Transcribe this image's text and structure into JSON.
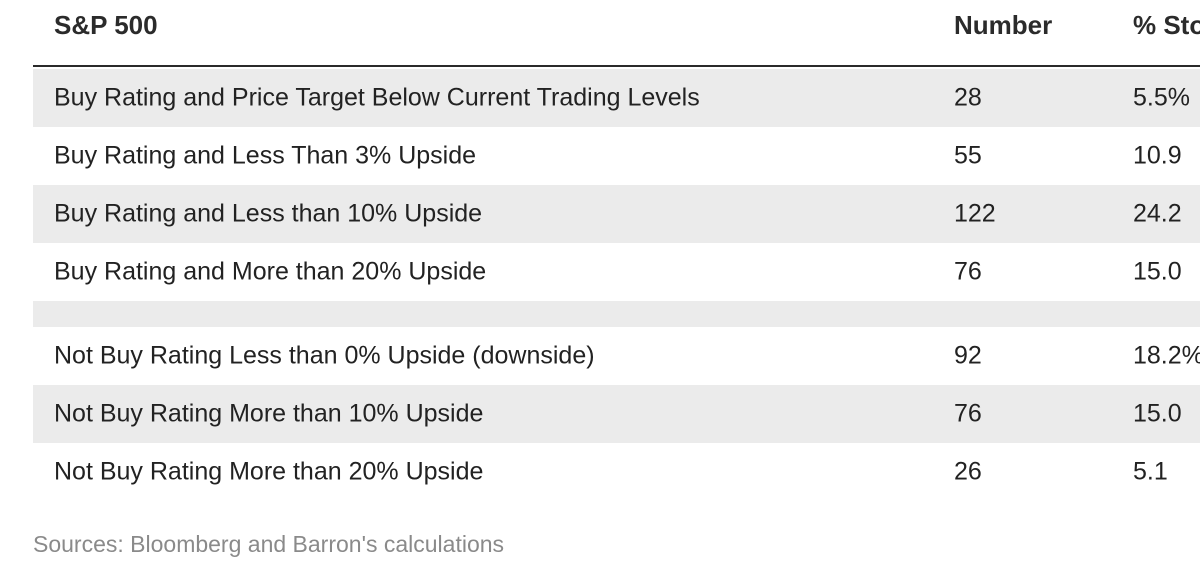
{
  "table": {
    "headers": [
      "S&P 500",
      "Number",
      "% Sto"
    ],
    "rows": [
      {
        "label": "Buy Rating and Price Target Below Current Trading Levels",
        "number": "28",
        "pct": "5.5%"
      },
      {
        "label": "Buy Rating and Less Than 3% Upside",
        "number": "55",
        "pct": "10.9"
      },
      {
        "label": "Buy Rating and Less than 10% Upside",
        "number": "122",
        "pct": "24.2"
      },
      {
        "label": "Buy Rating and More than 20% Upside",
        "number": "76",
        "pct": "15.0"
      },
      {
        "label": "Not Buy Rating Less than 0% Upside (downside)",
        "number": "92",
        "pct": "18.2%"
      },
      {
        "label": "Not Buy Rating More than 10% Upside",
        "number": "76",
        "pct": "15.0"
      },
      {
        "label": "Not Buy Rating More than 20% Upside",
        "number": "26",
        "pct": "5.1"
      }
    ]
  },
  "footer": {
    "source": "Sources: Bloomberg and Barron's calculations"
  },
  "colors": {
    "shaded_row": "#ebebeb",
    "header_rule": "#2a2a2a",
    "source_text": "#8a8a8a"
  }
}
